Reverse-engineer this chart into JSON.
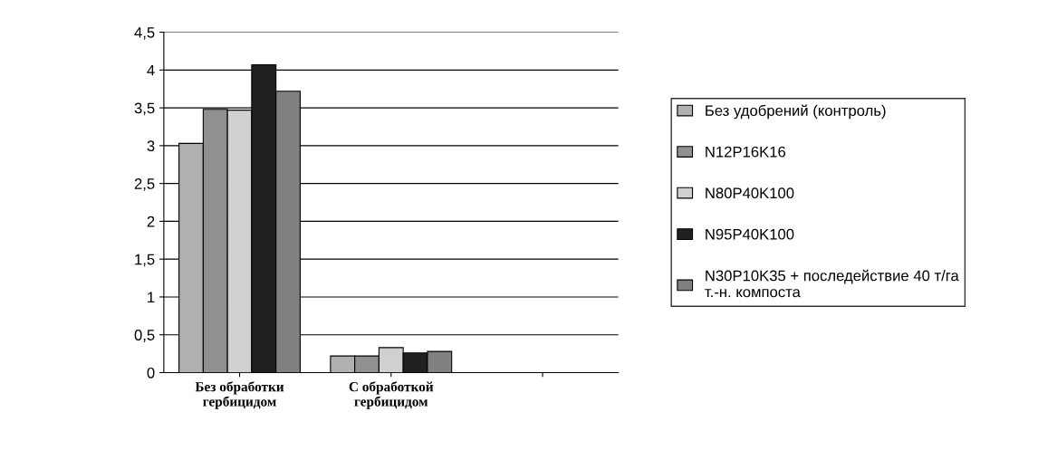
{
  "chart_data": {
    "type": "bar",
    "categories": [
      "Без обработки гербицидом",
      "С обработкой гербицидом",
      null
    ],
    "series": [
      {
        "name": "Без удобрений (контроль)",
        "color": "#b0b0b0",
        "values": [
          3.03,
          0.22,
          null
        ]
      },
      {
        "name": "N12P16K16",
        "color": "#909090",
        "values": [
          3.48,
          0.22,
          null
        ]
      },
      {
        "name": "N80P40K100",
        "color": "#d0d0d0",
        "values": [
          3.47,
          0.33,
          null
        ]
      },
      {
        "name": "N95P40K100",
        "color": "#202020",
        "values": [
          4.07,
          0.26,
          null
        ]
      },
      {
        "name": "N30P10K35 + последействие 40 т/га т.-н. компоста",
        "color": "#808080",
        "values": [
          3.72,
          0.28,
          null
        ]
      }
    ],
    "ylim": [
      0,
      4.5
    ],
    "yticks": [
      0,
      {
        "value": 0.5,
        "label": "0,5"
      },
      1,
      {
        "value": 1.5,
        "label": "1,5"
      },
      2,
      {
        "value": 2.5,
        "label": "2,5"
      },
      3,
      {
        "value": 3.5,
        "label": "3,5"
      },
      4,
      {
        "value": 4.5,
        "label": "4,5"
      }
    ],
    "grid": "y",
    "legend": "right"
  }
}
